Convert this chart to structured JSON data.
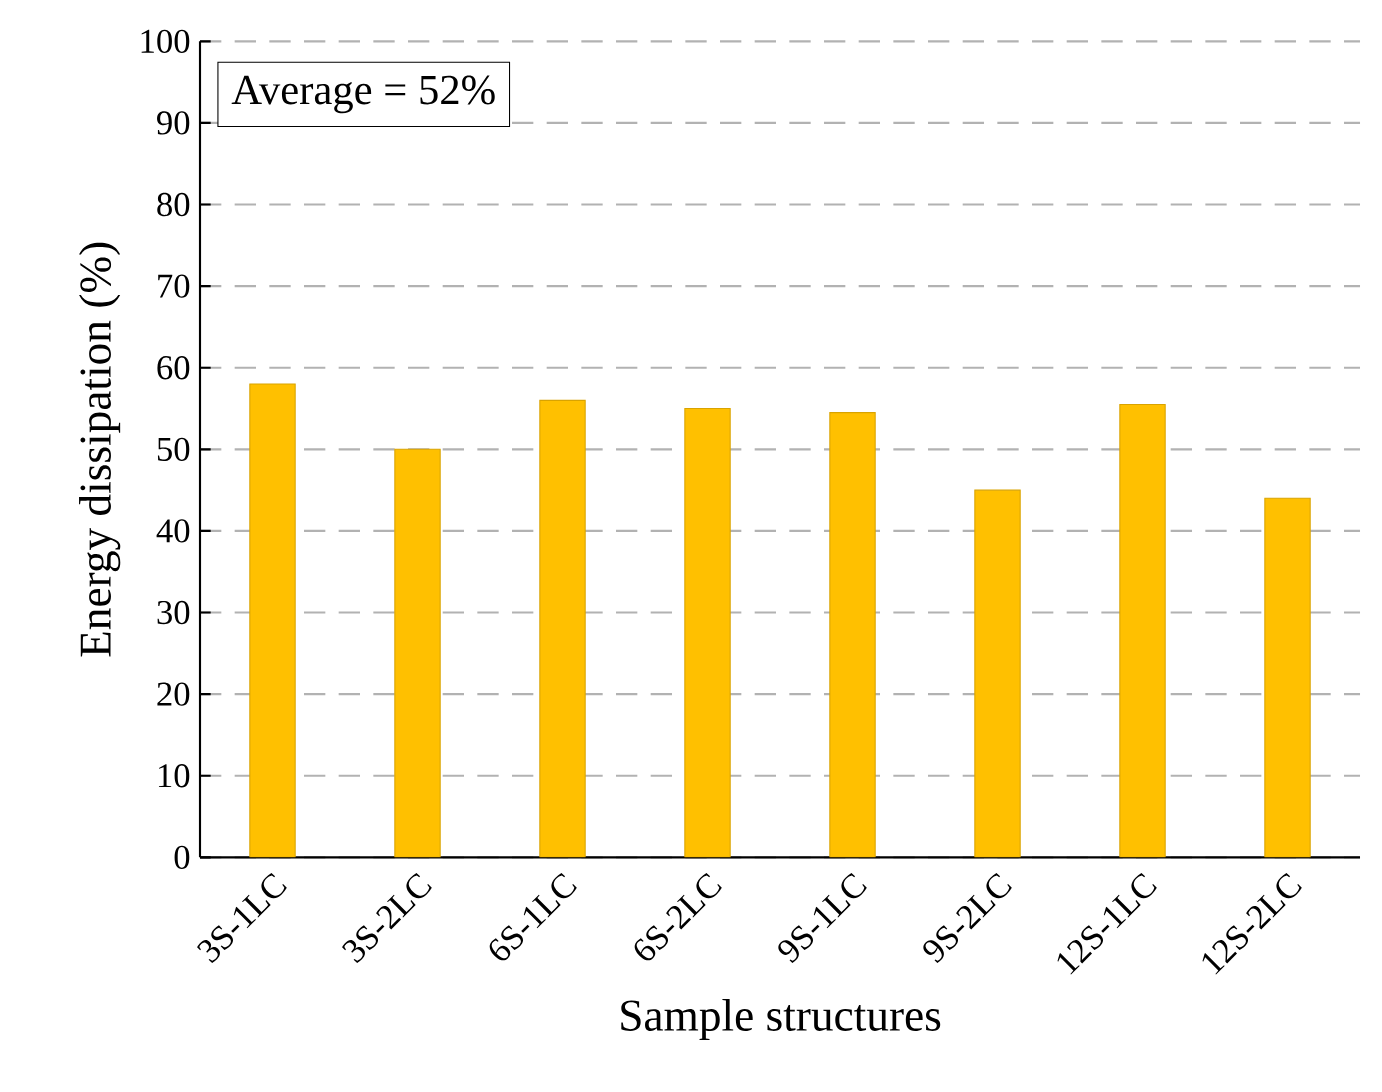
{
  "chart_data": {
    "type": "bar",
    "xlabel": "Sample structures",
    "ylabel": "Energy dissipation (%)",
    "categories": [
      "3S-1LC",
      "3S-2LC",
      "6S-1LC",
      "6S-2LC",
      "9S-1LC",
      "9S-2LC",
      "12S-1LC",
      "12S-2LC"
    ],
    "values": [
      58,
      50,
      56,
      55,
      54.5,
      45,
      55.5,
      44
    ],
    "color": "#ffc000",
    "ylim": [
      0,
      100
    ],
    "yticks": [
      0,
      10,
      20,
      30,
      40,
      50,
      60,
      70,
      80,
      90,
      100
    ],
    "grid": "y",
    "annotations": [
      "Average = 52%"
    ]
  }
}
